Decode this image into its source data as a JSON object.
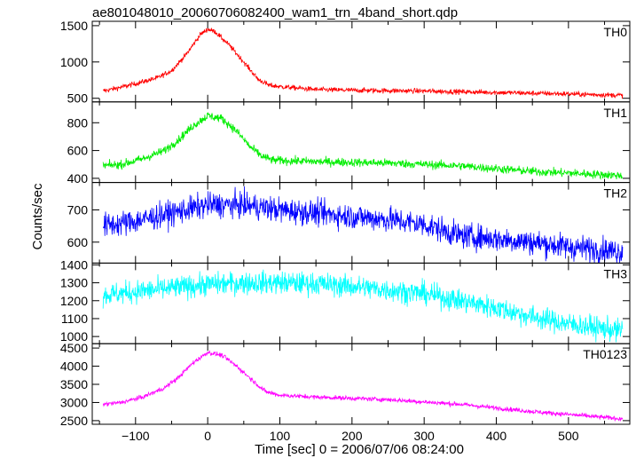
{
  "chart_data": {
    "type": "line",
    "title": "ae801048010_20060706082400_wam1_trn_4band_short.qdp",
    "xlabel": "Time [sec] 0 = 2006/07/06 08:24:00",
    "ylabel": "Counts/sec",
    "xlim": [
      -160,
      585
    ],
    "xticks": [
      -100,
      0,
      100,
      200,
      300,
      400,
      500
    ],
    "xtick_labels": [
      "−100",
      "0",
      "100",
      "200",
      "300",
      "400",
      "500"
    ],
    "grid": false,
    "panels": [
      {
        "name": "TH0",
        "color": "#ff0000",
        "ylim": [
          450,
          1560
        ],
        "yticks": [
          500,
          1000,
          1500
        ],
        "x": [
          -145,
          -130,
          -100,
          -70,
          -50,
          -30,
          -10,
          0,
          10,
          30,
          50,
          70,
          85,
          100,
          150,
          200,
          300,
          400,
          500,
          575
        ],
        "y": [
          600,
          630,
          700,
          780,
          880,
          1100,
          1380,
          1450,
          1420,
          1230,
          1000,
          760,
          680,
          660,
          620,
          610,
          600,
          580,
          560,
          540
        ],
        "noise": 25
      },
      {
        "name": "TH1",
        "color": "#00ee00",
        "ylim": [
          370,
          950
        ],
        "yticks": [
          400,
          600,
          800
        ],
        "x": [
          -145,
          -120,
          -90,
          -60,
          -40,
          -20,
          0,
          20,
          40,
          60,
          75,
          90,
          150,
          250,
          350,
          450,
          575
        ],
        "y": [
          490,
          500,
          540,
          600,
          680,
          780,
          850,
          830,
          740,
          620,
          560,
          530,
          520,
          510,
          490,
          450,
          420
        ],
        "noise": 22
      },
      {
        "name": "TH2",
        "color": "#0000ff",
        "ylim": [
          535,
          785
        ],
        "yticks": [
          600,
          700
        ],
        "x": [
          -145,
          -100,
          -50,
          0,
          50,
          100,
          150,
          200,
          250,
          300,
          350,
          400,
          450,
          500,
          575
        ],
        "y": [
          650,
          665,
          690,
          715,
          715,
          700,
          690,
          680,
          670,
          655,
          620,
          610,
          600,
          585,
          570
        ],
        "noise": 28
      },
      {
        "name": "TH3",
        "color": "#00ffff",
        "ylim": [
          960,
          1410
        ],
        "yticks": [
          1000,
          1100,
          1200,
          1300,
          1400
        ],
        "x": [
          -145,
          -100,
          -50,
          0,
          50,
          100,
          150,
          200,
          250,
          300,
          350,
          400,
          450,
          500,
          575
        ],
        "y": [
          1230,
          1250,
          1270,
          1290,
          1300,
          1300,
          1295,
          1280,
          1260,
          1240,
          1200,
          1160,
          1110,
          1070,
          1030
        ],
        "noise": 45
      },
      {
        "name": "TH0123",
        "color": "#ff00ff",
        "ylim": [
          2400,
          4620
        ],
        "yticks": [
          2500,
          3000,
          3500,
          4000,
          4500
        ],
        "x": [
          -145,
          -120,
          -90,
          -60,
          -40,
          -20,
          0,
          20,
          40,
          60,
          80,
          100,
          150,
          250,
          350,
          450,
          575
        ],
        "y": [
          2950,
          3000,
          3150,
          3400,
          3700,
          4100,
          4380,
          4300,
          4000,
          3650,
          3300,
          3200,
          3150,
          3080,
          2950,
          2750,
          2550
        ],
        "noise": 45
      }
    ]
  }
}
